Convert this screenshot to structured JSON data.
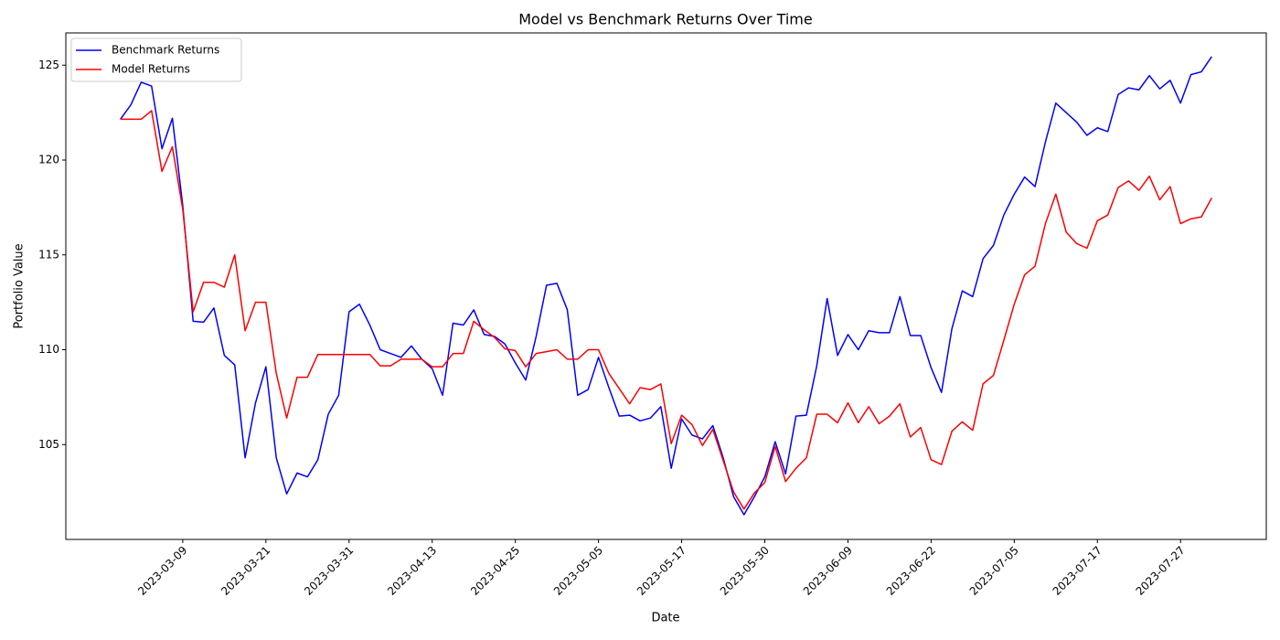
{
  "chart_data": {
    "type": "line",
    "title": "Model vs Benchmark Returns Over Time",
    "x_label": "Date",
    "y_label": "Portfolio Value",
    "legend": "upper left",
    "grid": false,
    "xlim": [
      -5.25,
      110.25
    ],
    "xticks": [
      {
        "value": 6,
        "label": "2023-03-09"
      },
      {
        "value": 14,
        "label": "2023-03-21"
      },
      {
        "value": 22,
        "label": "2023-03-31"
      },
      {
        "value": 30,
        "label": "2023-04-13"
      },
      {
        "value": 38,
        "label": "2023-04-25"
      },
      {
        "value": 46,
        "label": "2023-05-05"
      },
      {
        "value": 54,
        "label": "2023-05-17"
      },
      {
        "value": 62,
        "label": "2023-05-30"
      },
      {
        "value": 70,
        "label": "2023-06-09"
      },
      {
        "value": 78,
        "label": "2023-06-22"
      },
      {
        "value": 86,
        "label": "2023-07-05"
      },
      {
        "value": 94,
        "label": "2023-07-17"
      },
      {
        "value": 102,
        "label": "2023-07-27"
      }
    ],
    "ylim": [
      100,
      126.7
    ],
    "yticks": [
      105,
      110,
      115,
      120,
      125
    ],
    "series": [
      {
        "name": "Benchmark Returns",
        "color": "#0000ff",
        "values": [
          122.15,
          122.9,
          124.1,
          123.9,
          120.6,
          122.2,
          117.6,
          111.5,
          111.45,
          112.2,
          109.7,
          109.2,
          104.3,
          107.2,
          109.1,
          104.3,
          102.4,
          103.5,
          103.3,
          104.2,
          106.6,
          107.6,
          112.0,
          112.4,
          111.3,
          110.0,
          109.8,
          109.6,
          110.2,
          109.5,
          109.0,
          107.6,
          111.4,
          111.3,
          112.1,
          110.8,
          110.7,
          110.3,
          109.3,
          108.4,
          110.7,
          113.4,
          113.5,
          112.1,
          107.6,
          107.9,
          109.6,
          108.0,
          106.5,
          106.55,
          106.25,
          106.4,
          107.0,
          103.75,
          106.35,
          105.5,
          105.3,
          106.0,
          104.3,
          102.25,
          101.3,
          102.25,
          103.3,
          105.15,
          103.45,
          106.5,
          106.55,
          109.15,
          112.7,
          109.7,
          110.8,
          110.0,
          111.0,
          110.9,
          110.9,
          112.8,
          110.75,
          110.75,
          109.05,
          107.75,
          111.1,
          113.1,
          112.8,
          114.8,
          115.5,
          117.1,
          118.2,
          119.1,
          118.6,
          120.95,
          123.0,
          122.5,
          122.0,
          121.3,
          121.7,
          121.5,
          123.45,
          123.8,
          123.7,
          124.45,
          123.75,
          124.2,
          123.0,
          124.5,
          124.65,
          125.45
        ]
      },
      {
        "name": "Model Returns",
        "color": "#ff0000",
        "values": [
          122.15,
          122.15,
          122.15,
          122.6,
          119.4,
          120.7,
          117.4,
          112.0,
          113.55,
          113.55,
          113.3,
          115.0,
          111.0,
          112.5,
          112.5,
          108.75,
          106.4,
          108.55,
          108.55,
          109.75,
          109.75,
          109.75,
          109.75,
          109.75,
          109.75,
          109.15,
          109.15,
          109.5,
          109.5,
          109.5,
          109.1,
          109.1,
          109.8,
          109.8,
          111.5,
          111.05,
          110.65,
          110.05,
          109.95,
          109.1,
          109.8,
          109.9,
          110.0,
          109.5,
          109.5,
          110.0,
          110.0,
          108.75,
          107.95,
          107.15,
          108.0,
          107.9,
          108.2,
          105.05,
          106.55,
          106.05,
          104.95,
          105.8,
          104.15,
          102.5,
          101.6,
          102.45,
          103.0,
          104.9,
          103.05,
          103.75,
          104.3,
          106.6,
          106.6,
          106.15,
          107.2,
          106.15,
          107.0,
          106.1,
          106.5,
          107.15,
          105.4,
          105.9,
          104.2,
          103.95,
          105.7,
          106.2,
          105.75,
          108.2,
          108.65,
          110.5,
          112.4,
          113.95,
          114.4,
          116.65,
          118.2,
          116.2,
          115.6,
          115.35,
          116.8,
          117.1,
          118.55,
          118.9,
          118.4,
          119.15,
          117.9,
          118.6,
          116.65,
          116.9,
          117.0,
          118.0
        ]
      }
    ]
  }
}
